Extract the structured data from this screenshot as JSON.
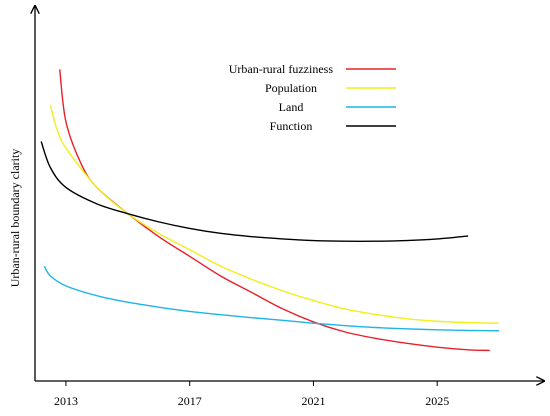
{
  "chart_data": {
    "type": "line",
    "title": "",
    "xlabel": "",
    "ylabel": "Urban-rural boundary clarity",
    "x_ticks": [
      "2013",
      "2017",
      "2021",
      "2025"
    ],
    "xlim": [
      2012.0,
      2028.0
    ],
    "ylim": [
      0,
      100
    ],
    "grid": false,
    "legend_position": "top-center",
    "series": [
      {
        "name": "Urban-rural fuzziness",
        "color": "#e8202a",
        "x": [
          2012.8,
          2013.0,
          2013.5,
          2014.0,
          2015.0,
          2016.0,
          2017.0,
          2018.0,
          2019.0,
          2020.0,
          2021.0,
          2022.0,
          2023.0,
          2024.0,
          2025.0,
          2026.0,
          2026.7
        ],
        "y": [
          88,
          72,
          59,
          52,
          44,
          37,
          31,
          25,
          20,
          15,
          11,
          8,
          6,
          4.5,
          3.3,
          2.5,
          2.3
        ]
      },
      {
        "name": "Population",
        "color": "#f2ee1c",
        "x": [
          2012.5,
          2012.7,
          2013.0,
          2014.0,
          2015.0,
          2016.0,
          2017.0,
          2018.0,
          2019.0,
          2020.0,
          2021.0,
          2022.0,
          2023.0,
          2024.0,
          2025.0,
          2026.0,
          2027.0
        ],
        "y": [
          77,
          70,
          64,
          52,
          44,
          38,
          33,
          28,
          24,
          20.5,
          17.5,
          15,
          13.3,
          12,
          11.2,
          10.8,
          10.6
        ]
      },
      {
        "name": "Land",
        "color": "#1fb4e6",
        "x": [
          2012.3,
          2012.5,
          2013.0,
          2014.0,
          2015.0,
          2016.0,
          2017.0,
          2018.0,
          2019.0,
          2020.0,
          2021.0,
          2022.0,
          2023.0,
          2024.0,
          2025.0,
          2026.0,
          2027.0
        ],
        "y": [
          28,
          25,
          22,
          19,
          17,
          15.5,
          14.2,
          13.2,
          12.3,
          11.5,
          10.6,
          9.9,
          9.3,
          8.9,
          8.6,
          8.4,
          8.3
        ]
      },
      {
        "name": "Function",
        "color": "#000000",
        "x": [
          2012.2,
          2012.5,
          2013.0,
          2014.0,
          2015.0,
          2016.0,
          2017.0,
          2018.0,
          2019.0,
          2020.0,
          2021.0,
          2022.0,
          2023.0,
          2024.0,
          2025.0,
          2026.0
        ],
        "y": [
          66,
          58,
          52,
          47,
          44,
          41.5,
          39.5,
          38,
          37,
          36.3,
          35.8,
          35.6,
          35.6,
          35.8,
          36.3,
          37.2
        ]
      }
    ]
  }
}
